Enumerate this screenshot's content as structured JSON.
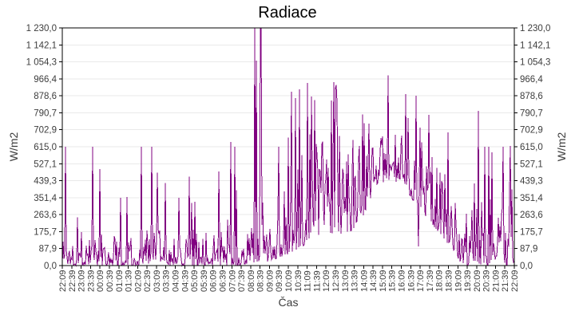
{
  "chart_data": {
    "type": "line",
    "title": "Radiace",
    "xlabel": "Čas",
    "ylabel_left": "W/m2",
    "ylabel_right": "W/m2",
    "ylim": [
      0,
      1230
    ],
    "grid": "horizontal",
    "legend": "none",
    "y_ticks": [
      "1 230,0",
      "1 142,1",
      "1 054,3",
      "966,4",
      "878,6",
      "790,7",
      "702,9",
      "615,0",
      "527,1",
      "439,3",
      "351,4",
      "263,6",
      "175,7",
      "87,9",
      "0,0"
    ],
    "y_tick_values": [
      1230.0,
      1142.1,
      1054.3,
      966.4,
      878.6,
      790.7,
      702.9,
      615.0,
      527.1,
      439.3,
      351.4,
      263.6,
      175.7,
      87.9,
      0.0
    ],
    "x_ticks": [
      "22:09",
      "22:39",
      "23:09",
      "23:39",
      "00:09",
      "00:39",
      "01:09",
      "01:39",
      "02:09",
      "02:39",
      "03:09",
      "03:39",
      "04:09",
      "04:39",
      "05:09",
      "05:39",
      "06:09",
      "06:39",
      "07:09",
      "07:39",
      "08:09",
      "08:39",
      "09:09",
      "09:39",
      "10:09",
      "10:39",
      "11:09",
      "11:39",
      "12:09",
      "12:39",
      "13:09",
      "13:39",
      "14:09",
      "14:39",
      "15:09",
      "15:39",
      "16:09",
      "16:39",
      "17:09",
      "17:39",
      "18:09",
      "18:39",
      "19:09",
      "19:39",
      "20:09",
      "20:39",
      "21:09",
      "21:39",
      "22:09"
    ],
    "colors": {
      "line": "#800080",
      "grid": "#e9e9e9",
      "frame": "#000000",
      "tick_text": "#3c3c3c",
      "title": "#000000"
    },
    "seed": 1337,
    "envelope": [
      {
        "t": 0,
        "lo": 0,
        "hi": 190,
        "spike": 615,
        "p": 0.045
      },
      {
        "t": 17,
        "lo": 0,
        "hi": 190,
        "spike": 615,
        "p": 0.045
      },
      {
        "t": 17.8,
        "lo": 0,
        "hi": 110,
        "spike": 250,
        "p": 0.02
      },
      {
        "t": 18.4,
        "lo": 0,
        "hi": 40,
        "spike": 70,
        "p": 0
      },
      {
        "t": 19.2,
        "lo": 5,
        "hi": 90,
        "spike": 300,
        "p": 0.03
      },
      {
        "t": 19.9,
        "lo": 10,
        "hi": 170,
        "spike": 620,
        "p": 0.09
      },
      {
        "t": 20.8,
        "lo": 20,
        "hi": 280,
        "spike": 640,
        "p": 0.08
      },
      {
        "t": 22,
        "lo": 20,
        "hi": 260,
        "spike": 620,
        "p": 0.08
      },
      {
        "t": 23,
        "lo": 40,
        "hi": 380,
        "spike": 630,
        "p": 0.1
      },
      {
        "t": 24,
        "lo": 60,
        "hi": 460,
        "spike": 850,
        "p": 0.12
      },
      {
        "t": 25.5,
        "lo": 100,
        "hi": 620,
        "spike": 940,
        "p": 0.15
      },
      {
        "t": 27,
        "lo": 140,
        "hi": 700,
        "spike": 950,
        "p": 0.18
      },
      {
        "t": 28.5,
        "lo": 170,
        "hi": 770,
        "spike": 950,
        "p": 0.2
      },
      {
        "t": 30,
        "lo": 150,
        "hi": 700,
        "spike": 930,
        "p": 0.15
      },
      {
        "t": 31.5,
        "lo": 200,
        "hi": 620,
        "spike": 800,
        "p": 0.1
      },
      {
        "t": 33,
        "lo": 380,
        "hi": 650,
        "spike": 860,
        "p": 0.12
      },
      {
        "t": 34.5,
        "lo": 440,
        "hi": 720,
        "spike": 980,
        "p": 0.12
      },
      {
        "t": 36,
        "lo": 420,
        "hi": 700,
        "spike": 900,
        "p": 0.12
      },
      {
        "t": 37.5,
        "lo": 320,
        "hi": 620,
        "spike": 880,
        "p": 0.12
      },
      {
        "t": 39,
        "lo": 230,
        "hi": 520,
        "spike": 700,
        "p": 0.12
      },
      {
        "t": 40.5,
        "lo": 140,
        "hi": 420,
        "spike": 640,
        "p": 0.1
      },
      {
        "t": 42,
        "lo": 30,
        "hi": 220,
        "spike": 615,
        "p": 0.06
      },
      {
        "t": 42.8,
        "lo": 0,
        "hi": 120,
        "spike": 300,
        "p": 0.03
      },
      {
        "t": 43.4,
        "lo": 0,
        "hi": 300,
        "spike": 630,
        "p": 0.13
      },
      {
        "t": 48,
        "lo": 0,
        "hi": 300,
        "spike": 630,
        "p": 0.13
      }
    ],
    "spikes": [
      [
        0.35,
        615
      ],
      [
        3.2,
        615
      ],
      [
        4.0,
        500
      ],
      [
        6.2,
        350
      ],
      [
        6.9,
        355
      ],
      [
        8.4,
        615
      ],
      [
        9.5,
        615
      ],
      [
        10.05,
        480
      ],
      [
        12.4,
        350
      ],
      [
        13.5,
        460
      ],
      [
        14.1,
        330
      ],
      [
        17.9,
        640
      ],
      [
        18.35,
        615
      ],
      [
        18.5,
        390
      ],
      [
        20.4,
        1230
      ],
      [
        20.48,
        1230
      ],
      [
        20.58,
        1060
      ],
      [
        21.05,
        1230
      ],
      [
        21.13,
        1230
      ],
      [
        23.0,
        615
      ],
      [
        24.3,
        900
      ],
      [
        26.0,
        945
      ],
      [
        28.8,
        950
      ],
      [
        29.1,
        935
      ],
      [
        34.6,
        985
      ],
      [
        37.6,
        880
      ],
      [
        37.85,
        100
      ],
      [
        38.9,
        780
      ],
      [
        41.0,
        690
      ],
      [
        44.2,
        800
      ],
      [
        44.9,
        615
      ],
      [
        45.25,
        615
      ],
      [
        46.8,
        615
      ],
      [
        47.6,
        620
      ]
    ]
  }
}
